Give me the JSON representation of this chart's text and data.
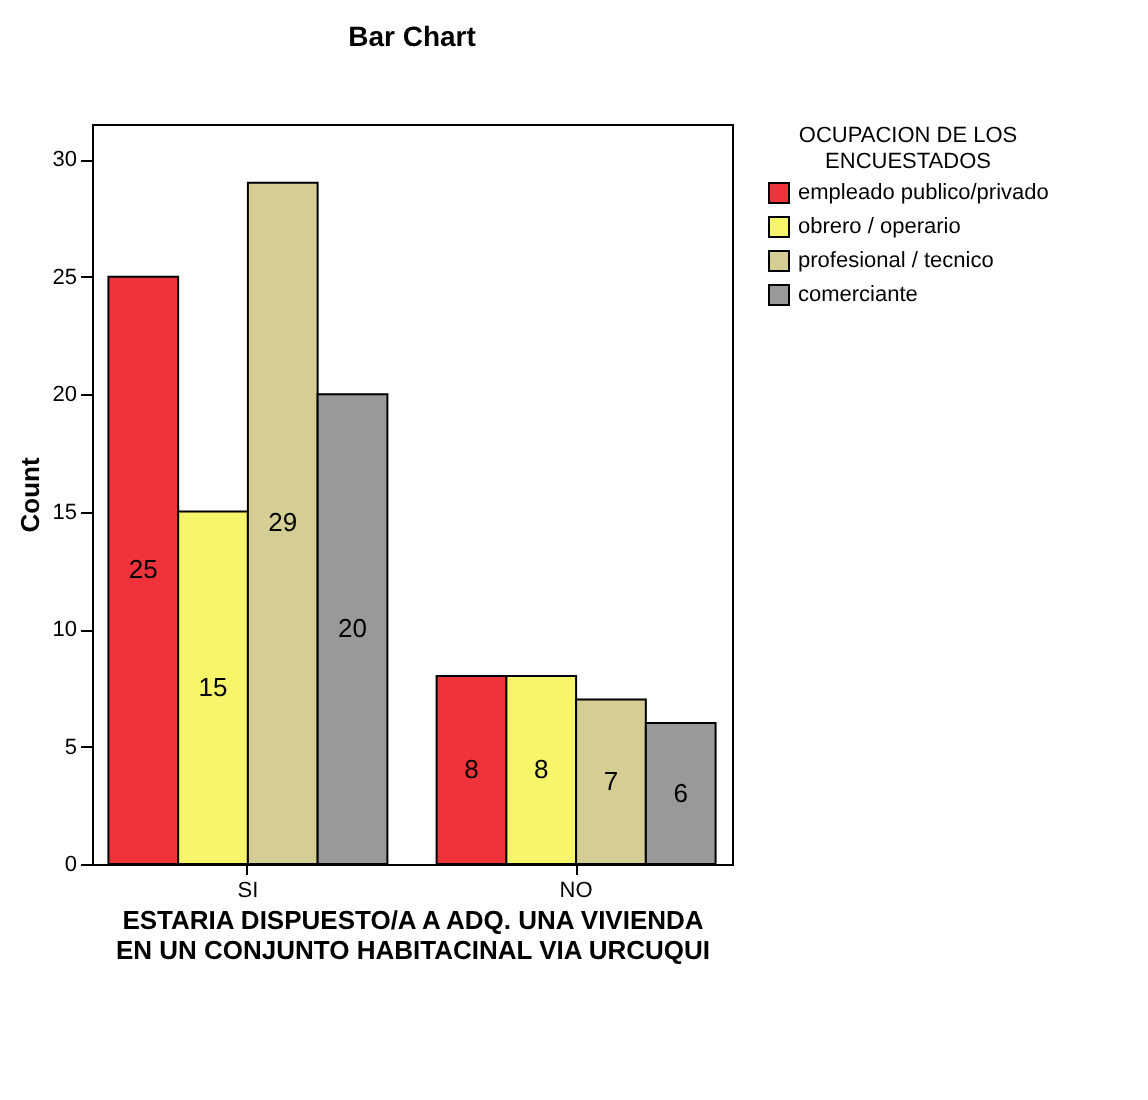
{
  "chart_data": {
    "type": "bar",
    "title": "Bar Chart",
    "xlabel": "ESTARIA DISPUESTO/A A ADQ. UNA VIVIENDA EN UN CONJUNTO HABITACINAL VIA URCUQUI",
    "ylabel": "Count",
    "legend_title": "OCUPACION DE LOS ENCUESTADOS",
    "categories": [
      "SI",
      "NO"
    ],
    "series": [
      {
        "name": "empleado publico/privado",
        "color": "#f0333a",
        "values": [
          25,
          8
        ]
      },
      {
        "name": "obrero / operario",
        "color": "#f7f56a",
        "values": [
          15,
          8
        ]
      },
      {
        "name": "profesional / tecnico",
        "color": "#d4ce94",
        "values": [
          29,
          7
        ]
      },
      {
        "name": "comerciante",
        "color": "#999999",
        "values": [
          20,
          6
        ]
      }
    ],
    "ylim": [
      0,
      31.5
    ],
    "yticks": [
      0,
      5,
      10,
      15,
      20,
      25,
      30
    ],
    "grid": false,
    "legend": "right",
    "data_labels": true
  }
}
